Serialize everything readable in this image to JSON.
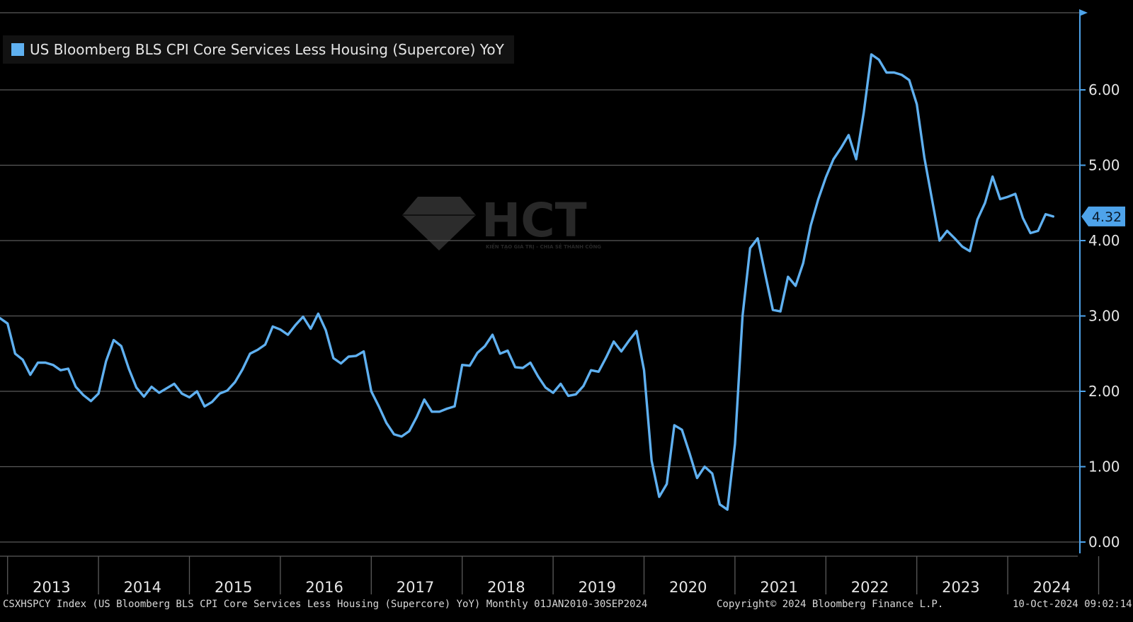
{
  "legend": {
    "label": "US Bloomberg BLS CPI Core Services Less Housing (Supercore) YoY",
    "color": "#5fb0f0"
  },
  "footer": {
    "ticker": "CSXHSPCY Index (US Bloomberg BLS CPI Core Services Less Housing (Supercore) YoY)  Monthly 01JAN2010-30SEP2024",
    "copyright": "Copyright© 2024 Bloomberg Finance L.P.",
    "timestamp": "10-Oct-2024 09:02:14"
  },
  "watermark": {
    "brand": "HCT",
    "tagline": "KIẾN TẠO GIÁ TRỊ - CHIA SẺ THÀNH CÔNG"
  },
  "chart_data": {
    "type": "line",
    "title": "",
    "xlabel": "",
    "ylabel": "",
    "ylim": [
      0,
      7
    ],
    "y_ticks": [
      0,
      1,
      2,
      3,
      4,
      5,
      6
    ],
    "y_tick_labels": [
      "0.00",
      "1.00",
      "2.00",
      "3.00",
      "4.00",
      "5.00",
      "6.00"
    ],
    "y_axis_side": "right",
    "x_tick_labels": [
      "2013",
      "2014",
      "2015",
      "2016",
      "2017",
      "2018",
      "2019",
      "2020",
      "2021",
      "2022",
      "2023",
      "2024"
    ],
    "grid": "horizontal",
    "last_value_label": "4.32",
    "series": [
      {
        "color": "#5fb0f0",
        "x_start": "2012-12",
        "x_end": "2024-09",
        "frequency": "monthly",
        "values": [
          2.97,
          2.9,
          2.5,
          2.42,
          2.22,
          2.38,
          2.38,
          2.35,
          2.28,
          2.3,
          2.06,
          1.95,
          1.87,
          1.97,
          2.4,
          2.68,
          2.6,
          2.3,
          2.05,
          1.93,
          2.06,
          1.98,
          2.04,
          2.1,
          1.97,
          1.92,
          2.0,
          1.8,
          1.86,
          1.97,
          2.01,
          2.12,
          2.29,
          2.5,
          2.55,
          2.62,
          2.86,
          2.82,
          2.75,
          2.88,
          2.99,
          2.83,
          3.03,
          2.81,
          2.44,
          2.37,
          2.46,
          2.47,
          2.53,
          2.0,
          1.8,
          1.58,
          1.43,
          1.4,
          1.47,
          1.66,
          1.89,
          1.73,
          1.73,
          1.77,
          1.8,
          2.35,
          2.34,
          2.51,
          2.6,
          2.75,
          2.5,
          2.54,
          2.32,
          2.31,
          2.38,
          2.2,
          2.05,
          1.98,
          2.1,
          1.94,
          1.96,
          2.07,
          2.28,
          2.26,
          2.45,
          2.66,
          2.53,
          2.67,
          2.8,
          2.28,
          1.08,
          0.6,
          0.77,
          1.55,
          1.49,
          1.18,
          0.85,
          1.0,
          0.91,
          0.5,
          0.43,
          1.3,
          3.0,
          3.9,
          4.03,
          3.55,
          3.08,
          3.06,
          3.52,
          3.4,
          3.7,
          4.2,
          4.55,
          4.84,
          5.08,
          5.23,
          5.4,
          5.08,
          5.7,
          6.47,
          6.4,
          6.23,
          6.23,
          6.2,
          6.13,
          5.81,
          5.1,
          4.55,
          4.0,
          4.13,
          4.03,
          3.92,
          3.86,
          4.28,
          4.5,
          4.85,
          4.55,
          4.58,
          4.62,
          4.3,
          4.1,
          4.13,
          4.35,
          4.32
        ]
      }
    ]
  }
}
